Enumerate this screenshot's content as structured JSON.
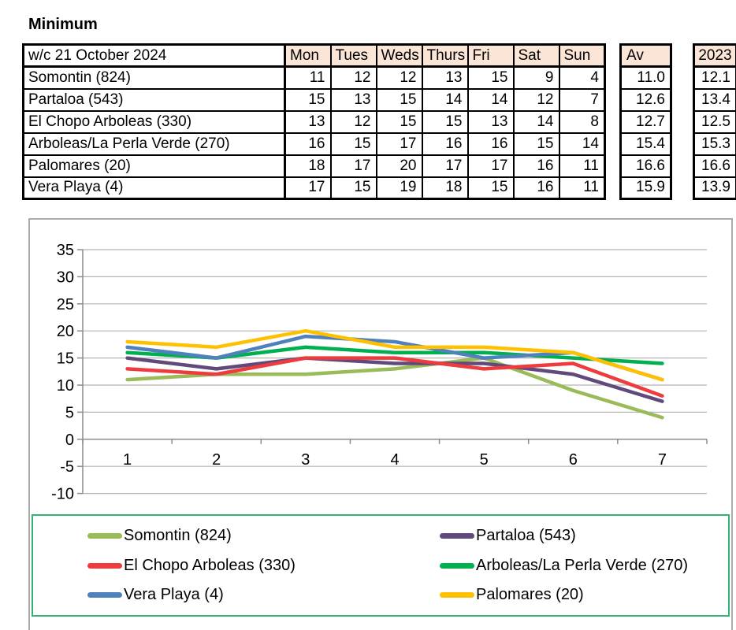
{
  "title": "Minimum",
  "table": {
    "week_label": "w/c 21 October 2024",
    "day_headers": [
      "Mon",
      "Tues",
      "Weds",
      "Thurs",
      "Fri",
      "Sat",
      "Sun"
    ],
    "av_header": "Av",
    "prev_year_header": "2023",
    "header_fill": "#FBE5D6",
    "rows": [
      {
        "location": "Somontin (824)",
        "values": [
          11,
          12,
          12,
          13,
          15,
          9,
          4
        ],
        "av": "11.0",
        "prev": "12.1"
      },
      {
        "location": "Partaloa (543)",
        "values": [
          15,
          13,
          15,
          14,
          14,
          12,
          7
        ],
        "av": "12.6",
        "prev": "13.4"
      },
      {
        "location": "El Chopo Arboleas (330)",
        "values": [
          13,
          12,
          15,
          15,
          13,
          14,
          8
        ],
        "av": "12.7",
        "prev": "12.5"
      },
      {
        "location": "Arboleas/La Perla Verde (270)",
        "values": [
          16,
          15,
          17,
          16,
          16,
          15,
          14
        ],
        "av": "15.4",
        "prev": "15.3"
      },
      {
        "location": "Palomares (20)",
        "values": [
          18,
          17,
          20,
          17,
          17,
          16,
          11
        ],
        "av": "16.6",
        "prev": "16.6"
      },
      {
        "location": "Vera Playa (4)",
        "values": [
          17,
          15,
          19,
          18,
          15,
          16,
          11
        ],
        "av": "15.9",
        "prev": "13.9"
      }
    ]
  },
  "chart_data": {
    "type": "line",
    "x": [
      1,
      2,
      3,
      4,
      5,
      6,
      7
    ],
    "ylim": [
      -10,
      35
    ],
    "ytick_step": 5,
    "grid": true,
    "legend_position": "bottom",
    "series": [
      {
        "name": "Somontin (824)",
        "color": "#9BBB59",
        "values": [
          11,
          12,
          12,
          13,
          15,
          9,
          4
        ]
      },
      {
        "name": "Partaloa (543)",
        "color": "#604A7B",
        "values": [
          15,
          13,
          15,
          14,
          14,
          12,
          7
        ]
      },
      {
        "name": "El Chopo Arboleas (330)",
        "color": "#ED3B3E",
        "values": [
          13,
          12,
          15,
          15,
          13,
          14,
          8
        ]
      },
      {
        "name": "Arboleas/La Perla Verde (270)",
        "color": "#00B050",
        "values": [
          16,
          15,
          17,
          16,
          16,
          15,
          14
        ]
      },
      {
        "name": "Vera Playa (4)",
        "color": "#4F81BD",
        "values": [
          17,
          15,
          19,
          18,
          15,
          16,
          11
        ]
      },
      {
        "name": "Palomares (20)",
        "color": "#FFC000",
        "values": [
          18,
          17,
          20,
          17,
          17,
          16,
          11
        ]
      }
    ],
    "legend_columns": [
      [
        0,
        2,
        4
      ],
      [
        1,
        3,
        5
      ]
    ]
  },
  "colors": {
    "grid": "#B3B3B3",
    "axis": "#8C8C8C",
    "chart_border": "#ACACAC",
    "legend_border": "#35B377",
    "table_border": "#000000"
  }
}
